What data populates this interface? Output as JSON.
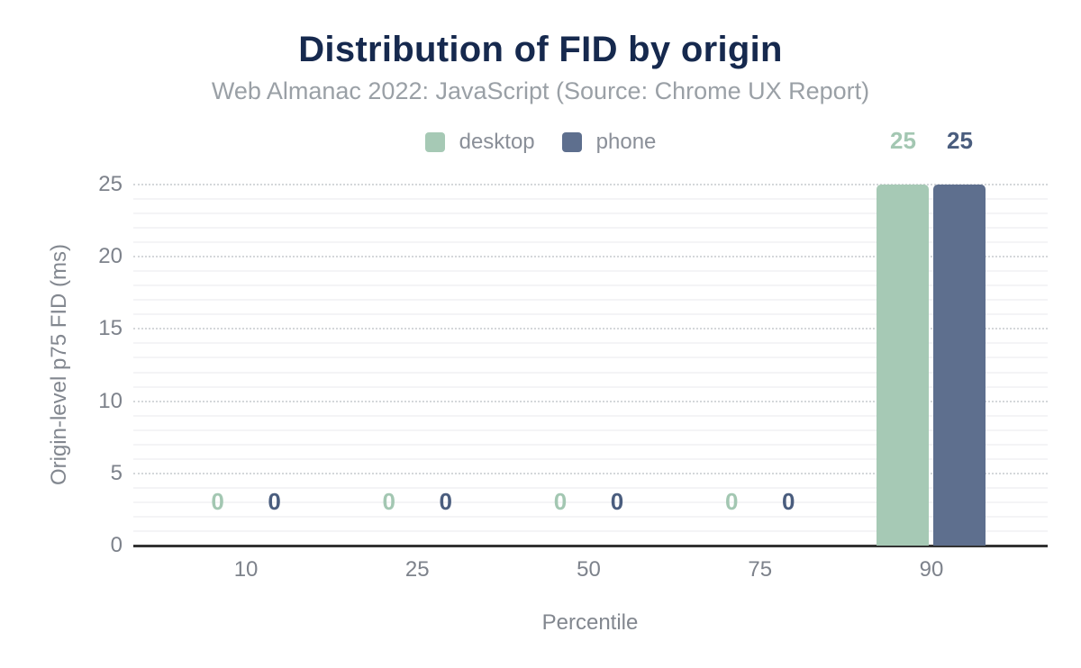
{
  "title": "Distribution of FID by origin",
  "subtitle": "Web Almanac 2022: JavaScript (Source: Chrome UX Report)",
  "colors": {
    "title": "#16294e",
    "subtitle": "#9aa0a6",
    "legend_text": "#8a8f98",
    "tick": "#7d828b",
    "axis_title": "#82878f",
    "axis_line": "#333333",
    "grid_major": "#d4d7da",
    "grid_minor": "#f4f4f6",
    "desktop": "#a6c9b5",
    "phone": "#5e6f8e",
    "desktop_value_label": "#a3c7b2",
    "phone_value_label": "#4a5d7e"
  },
  "chart_data": {
    "type": "bar",
    "title": "Distribution of FID by origin",
    "subtitle": "Web Almanac 2022: JavaScript (Source: Chrome UX Report)",
    "categories": [
      "10",
      "25",
      "50",
      "75",
      "90"
    ],
    "series": [
      {
        "name": "desktop",
        "color": "#a6c9b5",
        "label_color": "#a3c7b2",
        "values": [
          0,
          0,
          0,
          0,
          25
        ]
      },
      {
        "name": "phone",
        "color": "#5e6f8e",
        "label_color": "#4a5d7e",
        "values": [
          0,
          0,
          0,
          0,
          25
        ]
      }
    ],
    "xlabel": "Percentile",
    "ylabel": "Origin-level p75 FID (ms)",
    "ylim": [
      0,
      25
    ],
    "yticks": [
      0,
      5,
      10,
      15,
      20,
      25
    ],
    "minor_grid_step": 1,
    "grid": "on",
    "legend_position": "top",
    "data_labels": "on"
  }
}
